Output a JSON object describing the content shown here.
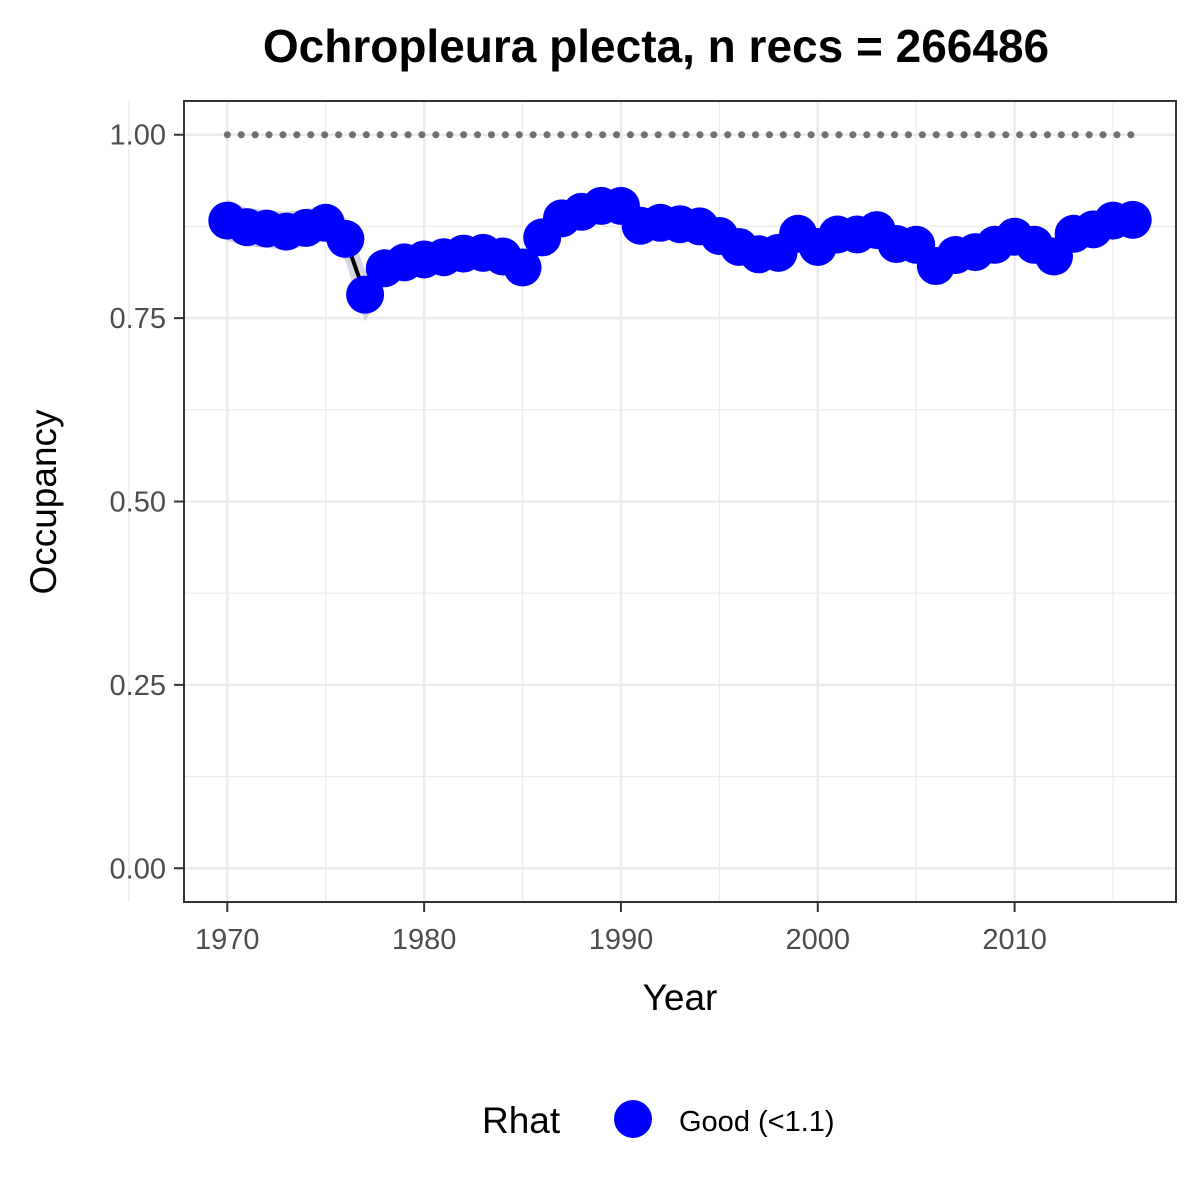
{
  "chart_data": {
    "type": "line",
    "title": "Ochropleura plecta, n recs = 266486",
    "xlabel": "Year",
    "ylabel": "Occupancy",
    "xlim": [
      1967.8,
      2018.2
    ],
    "ylim": [
      -0.046,
      1.046
    ],
    "x_ticks": [
      1970,
      1980,
      1990,
      2000,
      2010
    ],
    "x_tick_labels": [
      "1970",
      "1980",
      "1990",
      "2000",
      "2010"
    ],
    "y_ticks": [
      0.0,
      0.25,
      0.5,
      0.75,
      1.0
    ],
    "y_tick_labels": [
      "0.00",
      "0.25",
      "0.50",
      "0.75",
      "1.00"
    ],
    "grid": true,
    "colors": {
      "points": "#0000ff",
      "line": "#000000",
      "ribbon": "#c8c8d8",
      "reference_line": "#707070",
      "grid": "#ebebeb",
      "panel_border": "#333333"
    },
    "reference_line": {
      "y": 1.0,
      "style": "dotted"
    },
    "x": [
      1970,
      1971,
      1972,
      1973,
      1974,
      1975,
      1976,
      1977,
      1978,
      1979,
      1980,
      1981,
      1982,
      1983,
      1984,
      1985,
      1986,
      1987,
      1988,
      1989,
      1990,
      1991,
      1992,
      1993,
      1994,
      1995,
      1996,
      1997,
      1998,
      1999,
      2000,
      2001,
      2002,
      2003,
      2004,
      2005,
      2006,
      2007,
      2008,
      2009,
      2010,
      2011,
      2012,
      2013,
      2014,
      2015,
      2016
    ],
    "series": [
      {
        "name": "Occupancy",
        "values": [
          0.883,
          0.874,
          0.872,
          0.868,
          0.873,
          0.88,
          0.858,
          0.782,
          0.818,
          0.826,
          0.83,
          0.833,
          0.838,
          0.839,
          0.834,
          0.819,
          0.86,
          0.886,
          0.895,
          0.903,
          0.903,
          0.876,
          0.88,
          0.878,
          0.875,
          0.862,
          0.847,
          0.837,
          0.839,
          0.865,
          0.847,
          0.864,
          0.864,
          0.87,
          0.851,
          0.85,
          0.821,
          0.836,
          0.84,
          0.85,
          0.861,
          0.85,
          0.834,
          0.865,
          0.871,
          0.883,
          0.884
        ],
        "lower": [
          0.855,
          0.848,
          0.846,
          0.842,
          0.848,
          0.855,
          0.828,
          0.745,
          0.795,
          0.803,
          0.808,
          0.811,
          0.815,
          0.817,
          0.811,
          0.798,
          0.84,
          0.868,
          0.88,
          0.89,
          0.891,
          0.862,
          0.867,
          0.866,
          0.862,
          0.848,
          0.833,
          0.823,
          0.825,
          0.852,
          0.834,
          0.851,
          0.851,
          0.857,
          0.838,
          0.837,
          0.806,
          0.822,
          0.826,
          0.837,
          0.848,
          0.836,
          0.818,
          0.851,
          0.856,
          0.868,
          0.866
        ],
        "upper": [
          0.912,
          0.9,
          0.898,
          0.895,
          0.899,
          0.905,
          0.887,
          0.815,
          0.841,
          0.849,
          0.852,
          0.855,
          0.86,
          0.861,
          0.857,
          0.841,
          0.88,
          0.904,
          0.91,
          0.916,
          0.915,
          0.89,
          0.893,
          0.89,
          0.888,
          0.876,
          0.861,
          0.851,
          0.853,
          0.878,
          0.86,
          0.877,
          0.877,
          0.883,
          0.864,
          0.863,
          0.836,
          0.85,
          0.854,
          0.863,
          0.874,
          0.864,
          0.85,
          0.879,
          0.886,
          0.898,
          0.902
        ]
      }
    ],
    "legend": {
      "position": "bottom",
      "title": "Rhat",
      "entries": [
        {
          "label": "Good (<1.1)",
          "color": "#0000ff"
        }
      ]
    }
  }
}
